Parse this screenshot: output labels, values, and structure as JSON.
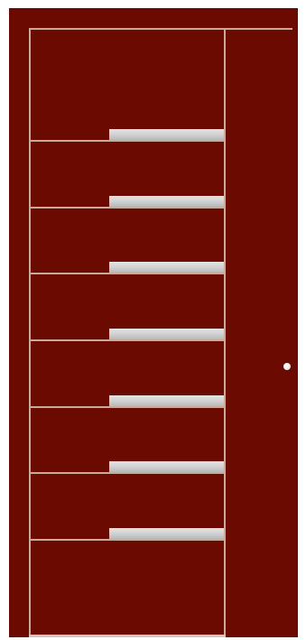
{
  "scene": {
    "subject": "door-icon",
    "colors": {
      "door": "#6b0a00",
      "groove": "#c9a99a",
      "inlay": "#d4d4d4",
      "handle": "#f3f3f3",
      "background": "#ffffff"
    },
    "inlay_count": 7
  }
}
